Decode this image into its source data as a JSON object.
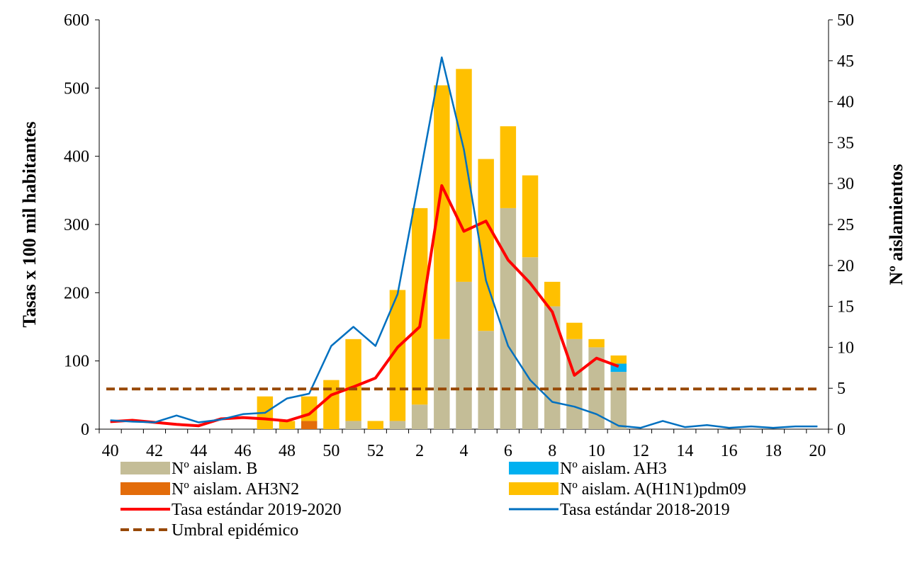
{
  "chart_data": {
    "type": "bar",
    "categories": [
      "40",
      "41",
      "42",
      "43",
      "44",
      "45",
      "46",
      "47",
      "48",
      "49",
      "50",
      "51",
      "52",
      "1",
      "2",
      "3",
      "4",
      "5",
      "6",
      "7",
      "8",
      "9",
      "10",
      "11",
      "12",
      "13",
      "14",
      "15",
      "16",
      "17",
      "18",
      "19",
      "20"
    ],
    "x_tick_labels": [
      "40",
      "42",
      "44",
      "46",
      "48",
      "50",
      "52",
      "2",
      "4",
      "6",
      "8",
      "10",
      "12",
      "14",
      "16",
      "18",
      "20"
    ],
    "y_left": {
      "label": "Tasas x 100 mil habitantes",
      "min": 0,
      "max": 600,
      "ticks": [
        "0",
        "100",
        "200",
        "300",
        "400",
        "500",
        "600"
      ]
    },
    "y_right": {
      "label": "Nº aislamientos",
      "min": 0,
      "max": 50,
      "ticks": [
        "0",
        "5",
        "10",
        "15",
        "20",
        "25",
        "30",
        "35",
        "40",
        "45",
        "50"
      ]
    },
    "bar_series": [
      {
        "name": "Nº aislam. B",
        "color": "#c4bd97",
        "axis": "right",
        "values": [
          0,
          0,
          0,
          0,
          0,
          0,
          0,
          0,
          0,
          0,
          0,
          1,
          0,
          1,
          3,
          11,
          18,
          12,
          27,
          21,
          15,
          11,
          10,
          7,
          0,
          0,
          0,
          0,
          0,
          0,
          0,
          0,
          0
        ]
      },
      {
        "name": "Nº aislam. AH3",
        "color": "#00b0f0",
        "axis": "right",
        "values": [
          0,
          0,
          0,
          0,
          0,
          0,
          0,
          0,
          0,
          0,
          0,
          0,
          0,
          0,
          0,
          0,
          0,
          0,
          0,
          0,
          0,
          0,
          0,
          1,
          0,
          0,
          0,
          0,
          0,
          0,
          0,
          0,
          0
        ]
      },
      {
        "name": "Nº aislam. AH3N2",
        "color": "#e36c0a",
        "axis": "right",
        "values": [
          0,
          0,
          0,
          0,
          0,
          0,
          0,
          0,
          0,
          1,
          0,
          0,
          0,
          0,
          0,
          0,
          0,
          0,
          0,
          0,
          0,
          0,
          0,
          0,
          0,
          0,
          0,
          0,
          0,
          0,
          0,
          0,
          0
        ]
      },
      {
        "name": "Nº aislam. A(H1N1)pdm09",
        "color": "#ffc000",
        "axis": "right",
        "values": [
          0,
          0,
          0,
          0,
          0,
          0,
          0,
          4,
          1,
          3,
          6,
          10,
          1,
          16,
          24,
          31,
          26,
          21,
          10,
          10,
          3,
          2,
          1,
          1,
          0,
          0,
          0,
          0,
          0,
          0,
          0,
          0,
          0
        ]
      }
    ],
    "line_series": [
      {
        "name": "Tasa estándar 2019-2020",
        "color": "#ff0000",
        "axis": "left",
        "style": "solid-thick",
        "values": [
          11,
          13,
          10,
          7,
          5,
          15,
          17,
          15,
          12,
          22,
          50,
          62,
          75,
          120,
          150,
          357,
          290,
          305,
          248,
          214,
          172,
          79,
          104,
          92,
          null,
          null,
          null,
          null,
          null,
          null,
          null,
          null,
          null
        ]
      },
      {
        "name": "Tasa estándar 2018-2019",
        "color": "#0070c0",
        "axis": "left",
        "style": "solid",
        "values": [
          13,
          11,
          10,
          20,
          10,
          14,
          22,
          24,
          45,
          52,
          122,
          150,
          122,
          198,
          370,
          545,
          410,
          218,
          122,
          72,
          40,
          33,
          22,
          5,
          2,
          12,
          3,
          6,
          2,
          4,
          2,
          4,
          4
        ]
      },
      {
        "name": "Umbral epidémico",
        "color": "#974806",
        "axis": "left",
        "style": "dashed",
        "values": [
          59,
          59,
          59,
          59,
          59,
          59,
          59,
          59,
          59,
          59,
          59,
          59,
          59,
          59,
          59,
          59,
          59,
          59,
          59,
          59,
          59,
          59,
          59,
          59,
          59,
          59,
          59,
          59,
          59,
          59,
          59,
          59,
          59
        ]
      }
    ],
    "legend_order": [
      "Nº aislam. B",
      "Nº aislam. AH3",
      "Nº aislam. AH3N2",
      "Nº aislam. A(H1N1)pdm09",
      "Tasa estándar 2019-2020",
      "Tasa estándar 2018-2019",
      "Umbral epidémico"
    ],
    "legend_position": "bottom",
    "grid": false
  }
}
